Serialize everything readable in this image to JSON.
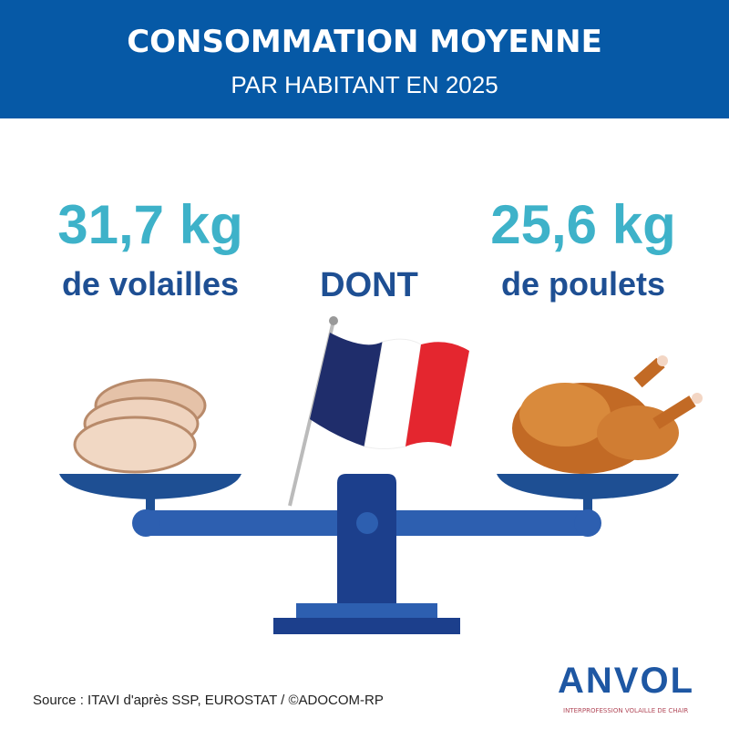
{
  "header": {
    "title": "CONSOMMATION MOYENNE",
    "subtitle": "PAR HABITANT EN 2025"
  },
  "left": {
    "value": "31,7 kg",
    "label": "de volailles"
  },
  "middle": {
    "label": "DONT"
  },
  "right": {
    "value": "25,6 kg",
    "label": "de poulets"
  },
  "source": "Source : ITAVI d'après SSP, EUROSTAT / ©ADOCOM-RP",
  "logo": {
    "name": "ANVOL",
    "tagline": "INTERPROFESSION VOLAILLE DE CHAIR"
  },
  "colors": {
    "header": "#0659a6",
    "accent": "#3eb2c9",
    "dark_blue": "#1e4f93",
    "scale": "#1c3f8c",
    "flag_blue": "#1f2d6b",
    "flag_red": "#e4262f"
  },
  "icons": [
    "sliced-poultry-icon",
    "roast-chicken-icon",
    "french-flag-icon",
    "balance-scale-icon"
  ]
}
